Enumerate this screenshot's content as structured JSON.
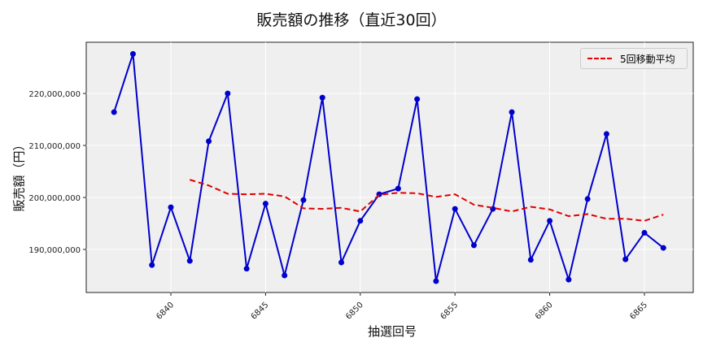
{
  "chart_data": {
    "type": "line",
    "title": "販売額の推移（直近30回）",
    "xlabel": "抽選回号",
    "ylabel": "販売額（円）",
    "x": [
      6837,
      6838,
      6839,
      6840,
      6841,
      6842,
      6843,
      6844,
      6845,
      6846,
      6847,
      6848,
      6849,
      6850,
      6851,
      6852,
      6853,
      6854,
      6855,
      6856,
      6857,
      6858,
      6859,
      6860,
      6861,
      6862,
      6863,
      6864,
      6865,
      6866
    ],
    "series": [
      {
        "name": "販売額",
        "color": "#0000cc",
        "style": "solid-marker",
        "values": [
          216400000,
          227600000,
          187000000,
          198100000,
          187800000,
          210800000,
          220000000,
          186300000,
          198800000,
          185000000,
          199500000,
          219200000,
          187500000,
          195500000,
          200600000,
          201700000,
          218900000,
          183900000,
          197800000,
          190800000,
          197800000,
          216400000,
          188000000,
          195500000,
          184200000,
          199700000,
          212200000,
          188100000,
          193200000,
          190300000
        ]
      },
      {
        "name": "5回移動平均",
        "color": "#e00000",
        "style": "dashed",
        "values": [
          null,
          null,
          null,
          null,
          203400000,
          202300000,
          200700000,
          200600000,
          200700000,
          200200000,
          197900000,
          197800000,
          198000000,
          197300000,
          200500000,
          200900000,
          200800000,
          200100000,
          200600000,
          198600000,
          198000000,
          197300000,
          198200000,
          197700000,
          196400000,
          196800000,
          195900000,
          195900000,
          195500000,
          196700000
        ]
      }
    ],
    "xticks": [
      "6840",
      "6845",
      "6850",
      "6855",
      "6860",
      "6865"
    ],
    "yticks": [
      "190,000,000",
      "200,000,000",
      "210,000,000",
      "220,000,000"
    ],
    "ylim": [
      181500000,
      229500000
    ],
    "grid": true,
    "legend_position": "upper right"
  },
  "legend": {
    "label": "5回移動平均"
  }
}
